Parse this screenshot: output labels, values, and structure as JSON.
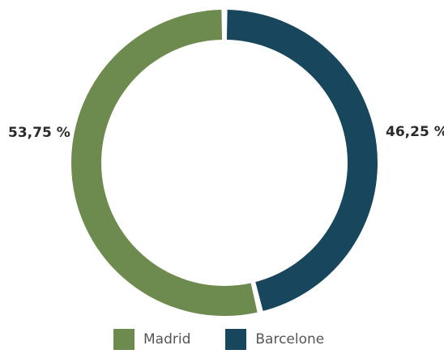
{
  "chart_data": {
    "type": "pie",
    "subtype": "donut",
    "title": "",
    "categories": [
      "Madrid",
      "Barcelone"
    ],
    "values": [
      53.75,
      46.25
    ],
    "value_labels": [
      "53,75 %",
      "46,25 %"
    ],
    "colors": [
      "#6e8b4f",
      "#18465c"
    ],
    "legend": "bottom",
    "legend_entries": [
      "Madrid",
      "Barcelone"
    ]
  }
}
